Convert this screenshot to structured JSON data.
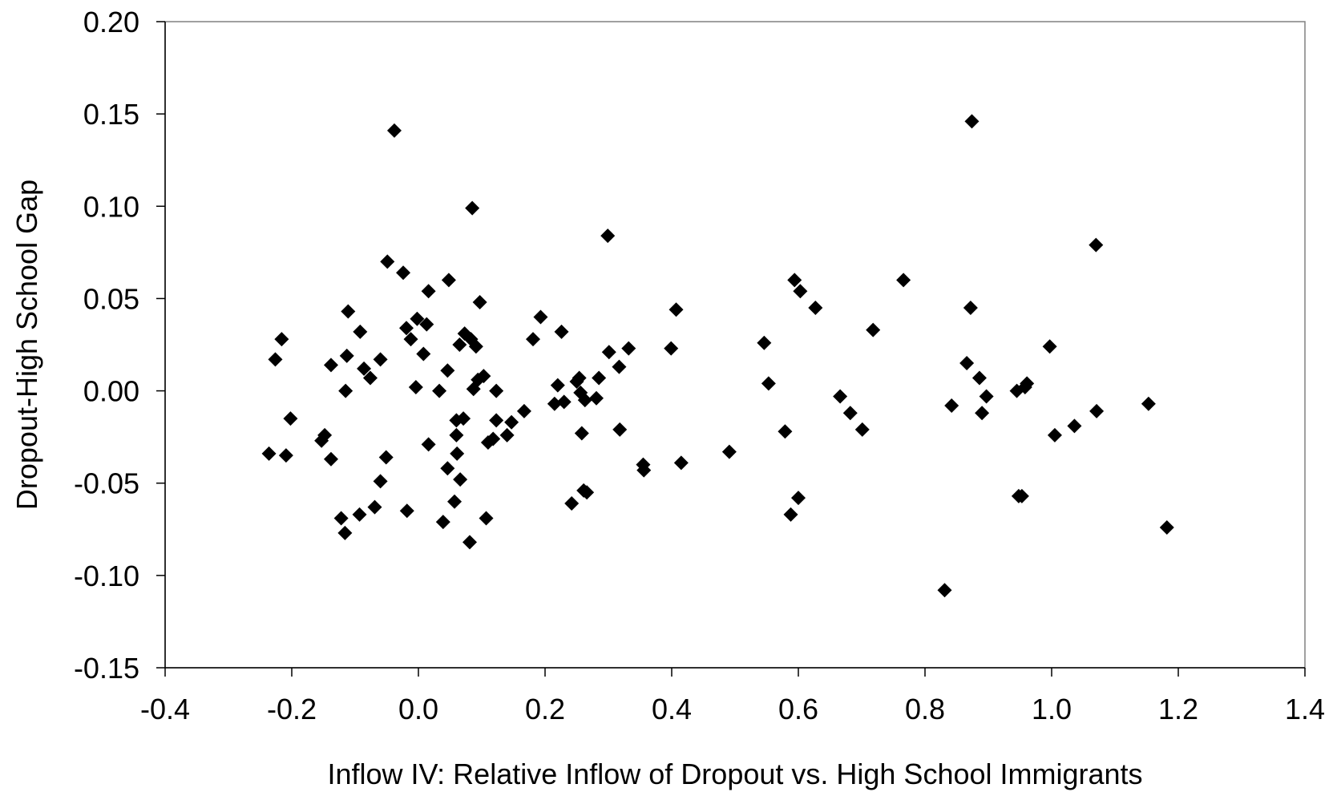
{
  "chart_data": {
    "type": "scatter",
    "title": "",
    "xlabel": "Inflow IV: Relative Inflow of Dropout vs. High School Immigrants",
    "ylabel": "Dropout-High School Gap",
    "xlim": [
      -0.4,
      1.4
    ],
    "ylim": [
      -0.15,
      0.2
    ],
    "x_ticks": [
      -0.4,
      -0.2,
      0.0,
      0.2,
      0.4,
      0.6,
      0.8,
      1.0,
      1.2,
      1.4
    ],
    "x_tick_labels": [
      "-0.4",
      "-0.2",
      "0.0",
      "0.2",
      "0.4",
      "0.6",
      "0.8",
      "1.0",
      "1.2",
      "1.4"
    ],
    "y_ticks": [
      0.2,
      0.15,
      0.1,
      0.05,
      0.0,
      -0.05,
      -0.1,
      -0.15
    ],
    "y_tick_labels": [
      "0.20",
      "0.15",
      "0.10",
      "0.05",
      "0.00",
      "-0.05",
      "-0.10",
      "-0.15"
    ],
    "grid": false,
    "legend": "none",
    "marker": "diamond",
    "marker_color": "#000000",
    "points": [
      [
        -0.236,
        -0.034
      ],
      [
        -0.226,
        0.017
      ],
      [
        -0.216,
        0.028
      ],
      [
        -0.209,
        -0.035
      ],
      [
        -0.202,
        -0.015
      ],
      [
        -0.153,
        -0.027
      ],
      [
        -0.148,
        -0.024
      ],
      [
        -0.138,
        0.014
      ],
      [
        -0.138,
        -0.037
      ],
      [
        -0.122,
        -0.069
      ],
      [
        -0.116,
        -0.077
      ],
      [
        -0.115,
        0.0
      ],
      [
        -0.113,
        0.019
      ],
      [
        -0.111,
        0.043
      ],
      [
        -0.093,
        -0.067
      ],
      [
        -0.092,
        0.032
      ],
      [
        -0.086,
        0.012
      ],
      [
        -0.076,
        0.007
      ],
      [
        -0.069,
        -0.063
      ],
      [
        -0.06,
        0.017
      ],
      [
        -0.06,
        -0.049
      ],
      [
        -0.051,
        -0.036
      ],
      [
        -0.049,
        0.07
      ],
      [
        -0.038,
        0.141
      ],
      [
        -0.024,
        0.064
      ],
      [
        -0.019,
        0.034
      ],
      [
        -0.018,
        -0.065
      ],
      [
        -0.012,
        0.028
      ],
      [
        -0.004,
        0.002
      ],
      [
        -0.002,
        0.039
      ],
      [
        0.008,
        0.02
      ],
      [
        0.013,
        0.036
      ],
      [
        0.016,
        0.054
      ],
      [
        0.016,
        -0.029
      ],
      [
        0.033,
        0.0
      ],
      [
        0.039,
        -0.071
      ],
      [
        0.046,
        -0.042
      ],
      [
        0.046,
        0.011
      ],
      [
        0.048,
        0.06
      ],
      [
        0.057,
        -0.06
      ],
      [
        0.06,
        -0.016
      ],
      [
        0.06,
        -0.024
      ],
      [
        0.061,
        -0.034
      ],
      [
        0.065,
        0.025
      ],
      [
        0.066,
        -0.048
      ],
      [
        0.071,
        -0.015
      ],
      [
        0.073,
        0.031
      ],
      [
        0.081,
        -0.082
      ],
      [
        0.083,
        0.028
      ],
      [
        0.085,
        0.099
      ],
      [
        0.087,
        0.001
      ],
      [
        0.091,
        0.024
      ],
      [
        0.094,
        0.006
      ],
      [
        0.097,
        0.048
      ],
      [
        0.103,
        0.008
      ],
      [
        0.107,
        -0.069
      ],
      [
        0.11,
        -0.028
      ],
      [
        0.118,
        -0.026
      ],
      [
        0.123,
        0.0
      ],
      [
        0.123,
        -0.016
      ],
      [
        0.14,
        -0.024
      ],
      [
        0.147,
        -0.017
      ],
      [
        0.167,
        -0.011
      ],
      [
        0.181,
        0.028
      ],
      [
        0.193,
        0.04
      ],
      [
        0.215,
        -0.007
      ],
      [
        0.22,
        0.003
      ],
      [
        0.226,
        0.032
      ],
      [
        0.23,
        -0.006
      ],
      [
        0.242,
        -0.061
      ],
      [
        0.25,
        0.005
      ],
      [
        0.254,
        0.007
      ],
      [
        0.256,
        -0.001
      ],
      [
        0.258,
        -0.023
      ],
      [
        0.261,
        -0.054
      ],
      [
        0.263,
        -0.005
      ],
      [
        0.266,
        -0.055
      ],
      [
        0.281,
        -0.004
      ],
      [
        0.285,
        0.007
      ],
      [
        0.299,
        0.084
      ],
      [
        0.301,
        0.021
      ],
      [
        0.317,
        0.013
      ],
      [
        0.318,
        -0.021
      ],
      [
        0.332,
        0.023
      ],
      [
        0.355,
        -0.04
      ],
      [
        0.356,
        -0.043
      ],
      [
        0.399,
        0.023
      ],
      [
        0.407,
        0.044
      ],
      [
        0.415,
        -0.039
      ],
      [
        0.491,
        -0.033
      ],
      [
        0.546,
        0.026
      ],
      [
        0.553,
        0.004
      ],
      [
        0.579,
        -0.022
      ],
      [
        0.588,
        -0.067
      ],
      [
        0.594,
        0.06
      ],
      [
        0.6,
        -0.058
      ],
      [
        0.603,
        0.054
      ],
      [
        0.627,
        0.045
      ],
      [
        0.666,
        -0.003
      ],
      [
        0.682,
        -0.012
      ],
      [
        0.701,
        -0.021
      ],
      [
        0.718,
        0.033
      ],
      [
        0.766,
        0.06
      ],
      [
        0.831,
        -0.108
      ],
      [
        0.842,
        -0.008
      ],
      [
        0.866,
        0.015
      ],
      [
        0.872,
        0.045
      ],
      [
        0.874,
        0.146
      ],
      [
        0.886,
        0.007
      ],
      [
        0.89,
        -0.012
      ],
      [
        0.897,
        -0.003
      ],
      [
        0.945,
        0.0
      ],
      [
        0.948,
        -0.057
      ],
      [
        0.953,
        -0.057
      ],
      [
        0.958,
        0.002
      ],
      [
        0.961,
        0.004
      ],
      [
        0.997,
        0.024
      ],
      [
        1.005,
        -0.024
      ],
      [
        1.036,
        -0.019
      ],
      [
        1.07,
        0.079
      ],
      [
        1.071,
        -0.011
      ],
      [
        1.153,
        -0.007
      ],
      [
        1.182,
        -0.074
      ]
    ]
  }
}
